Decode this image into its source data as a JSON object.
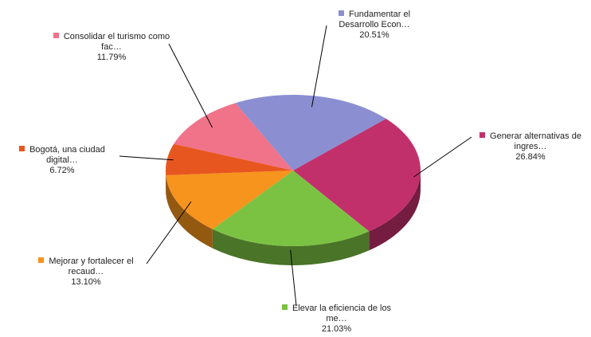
{
  "chart_data": {
    "type": "pie3d",
    "categories": [
      "Fundamentar el Desarrollo Econ…",
      "Generar alternativas de ingres…",
      "Elevar la eficiencia de los me…",
      "Mejorar y fortalecer el recaud…",
      "Bogotá, una ciudad digital…",
      "Consolidar el turismo como fac…"
    ],
    "values": [
      20.51,
      26.84,
      21.03,
      13.1,
      6.72,
      11.79
    ],
    "value_labels": [
      "20.51%",
      "26.84%",
      "21.03%",
      "13.10%",
      "6.72%",
      "11.79%"
    ],
    "colors": [
      "#8b8fd2",
      "#c2306c",
      "#7cc242",
      "#f7941d",
      "#e8561f",
      "#f07389"
    ]
  }
}
